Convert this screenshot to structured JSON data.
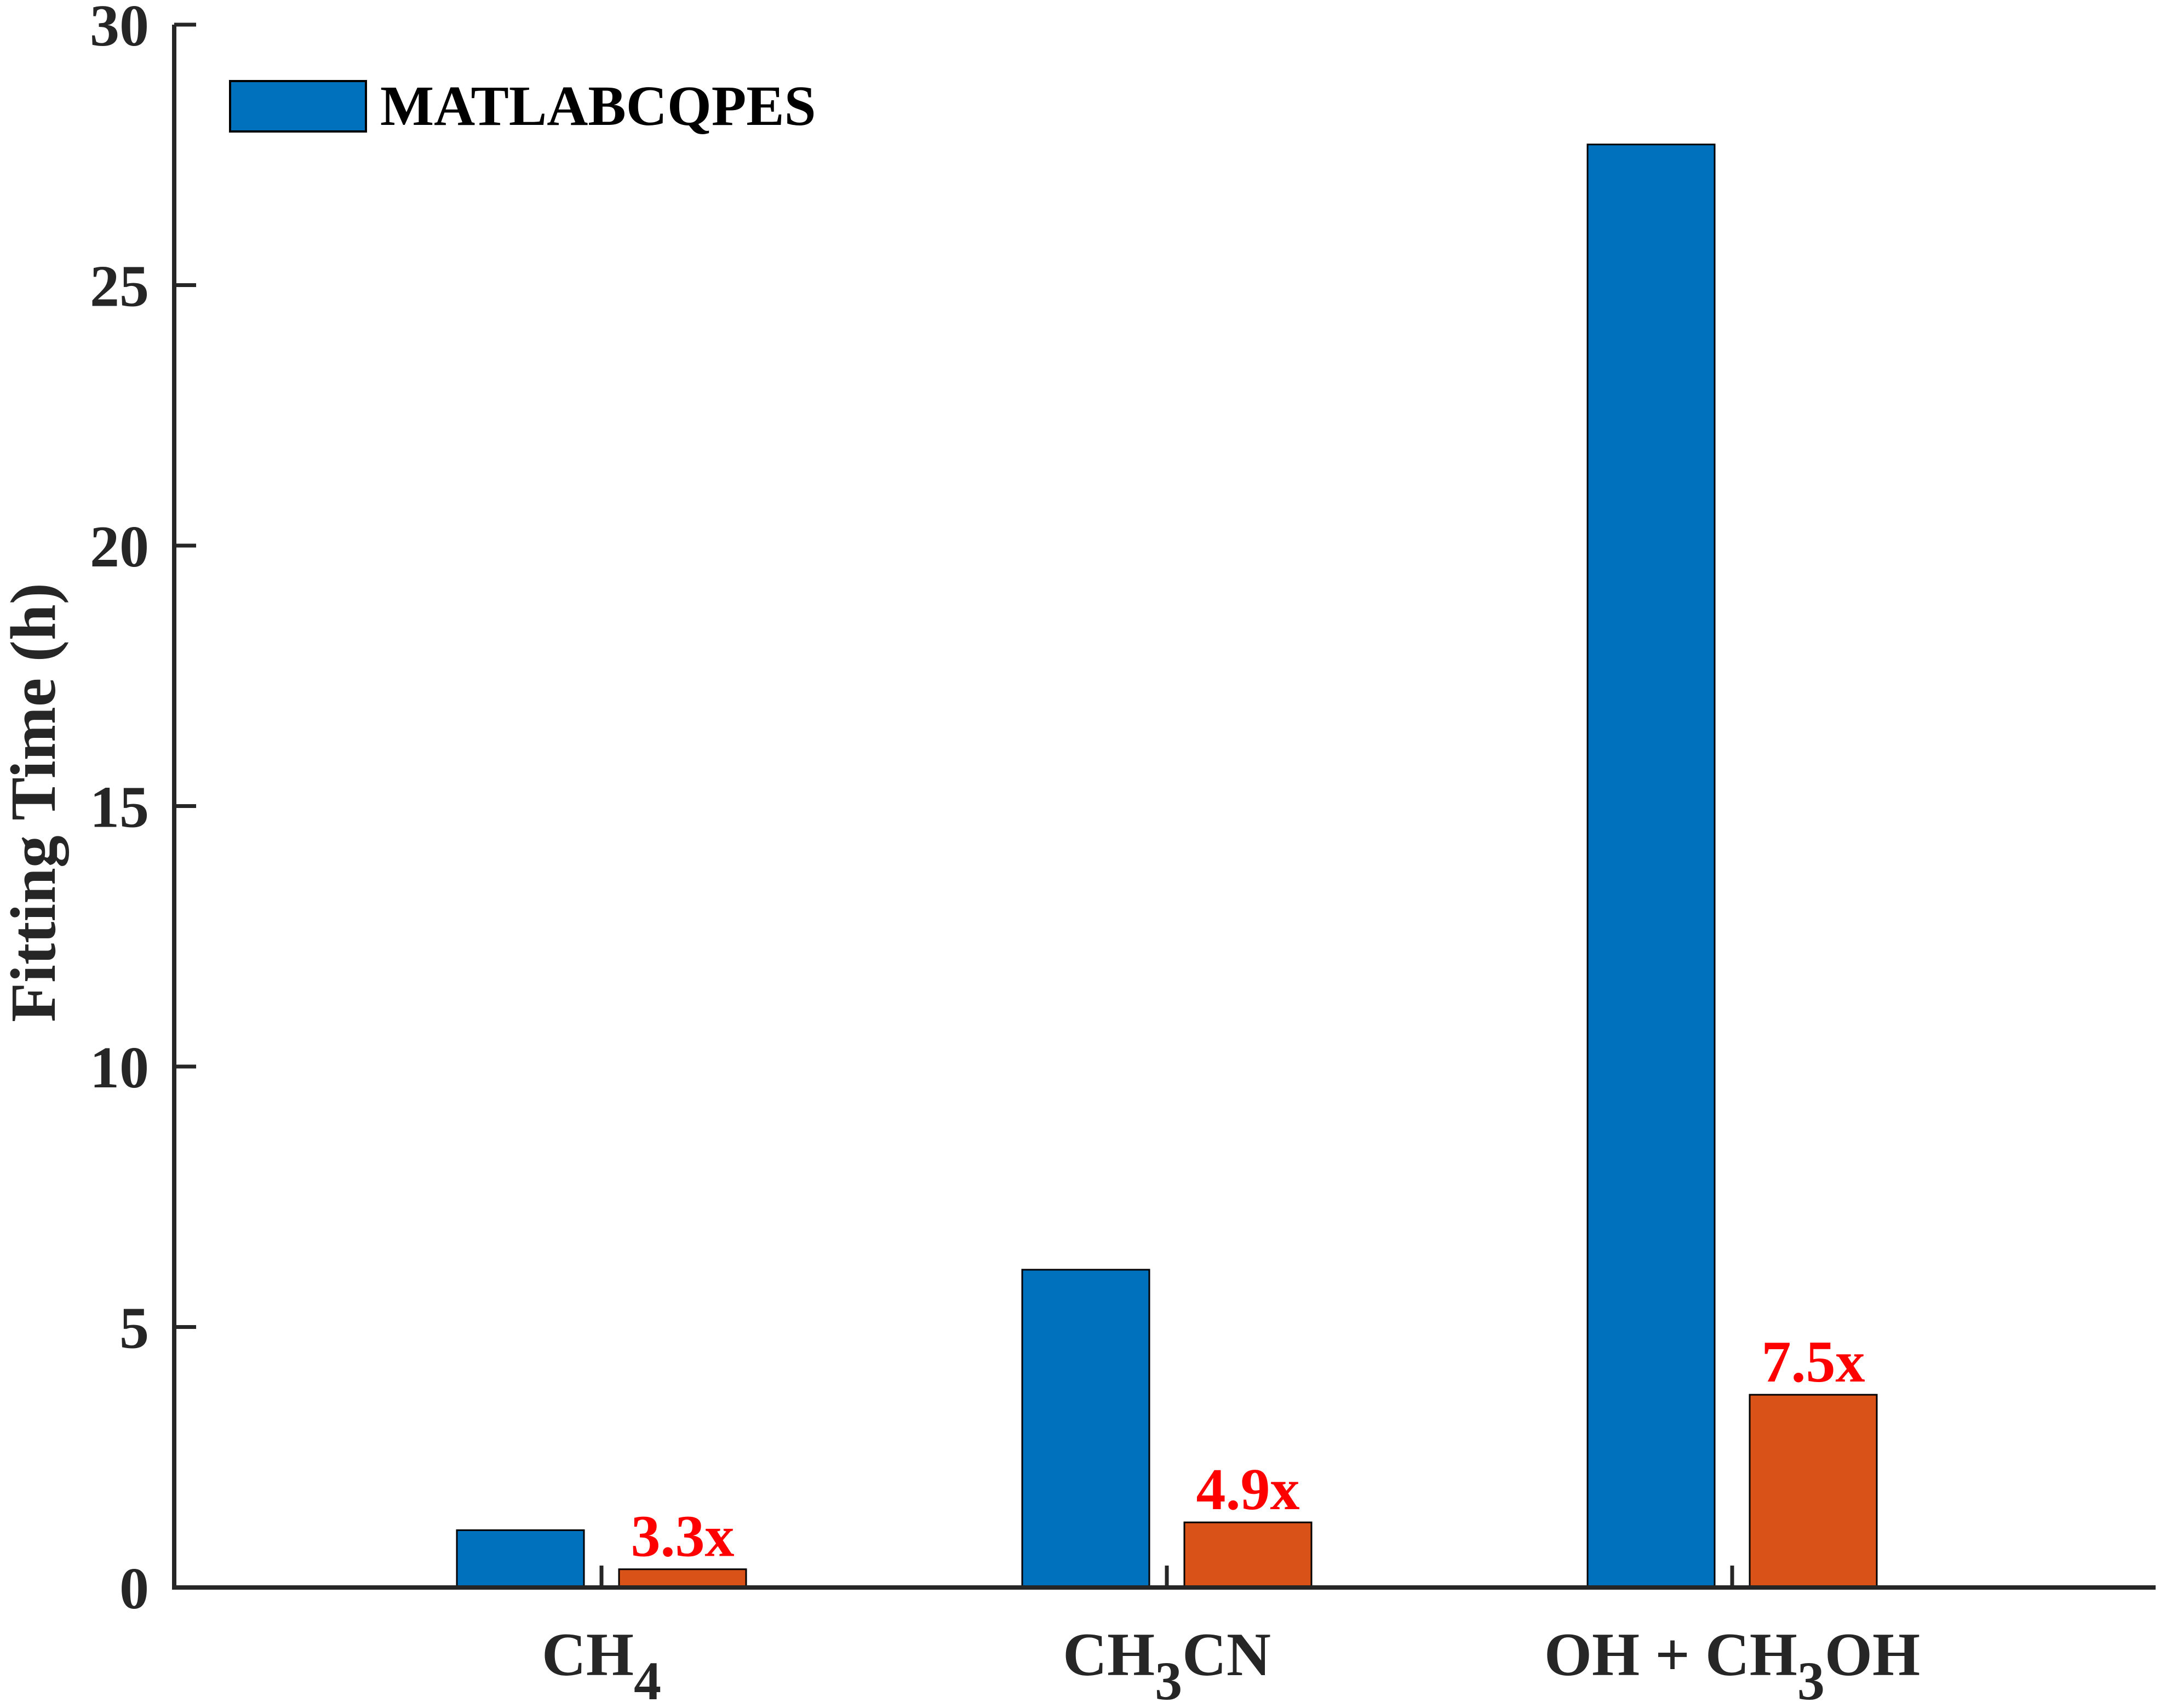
{
  "chart_data": {
    "type": "bar",
    "ylabel": "Fitting Time (h)",
    "ylim": [
      0,
      30
    ],
    "yticks": [
      0,
      5,
      10,
      15,
      20,
      25,
      30
    ],
    "categories": [
      {
        "base": "CH",
        "sub": "4",
        "rest": "",
        "pre": ""
      },
      {
        "base": "CH",
        "sub": "3",
        "rest": "CN",
        "pre": ""
      },
      {
        "base": "CH",
        "sub": "3",
        "rest": "OH",
        "pre": "OH + "
      }
    ],
    "series": [
      {
        "name": "MATLABCQPES",
        "color": "#0072BD",
        "values": [
          1.1,
          6.1,
          27.7
        ]
      },
      {
        "color": "#D95319",
        "values": [
          0.35,
          1.25,
          3.7
        ]
      }
    ],
    "annotations": [
      "3.3x",
      "4.9x",
      "7.5x"
    ],
    "annotation_color": "#FF0000",
    "legend_position": "top-left",
    "grid": false
  }
}
